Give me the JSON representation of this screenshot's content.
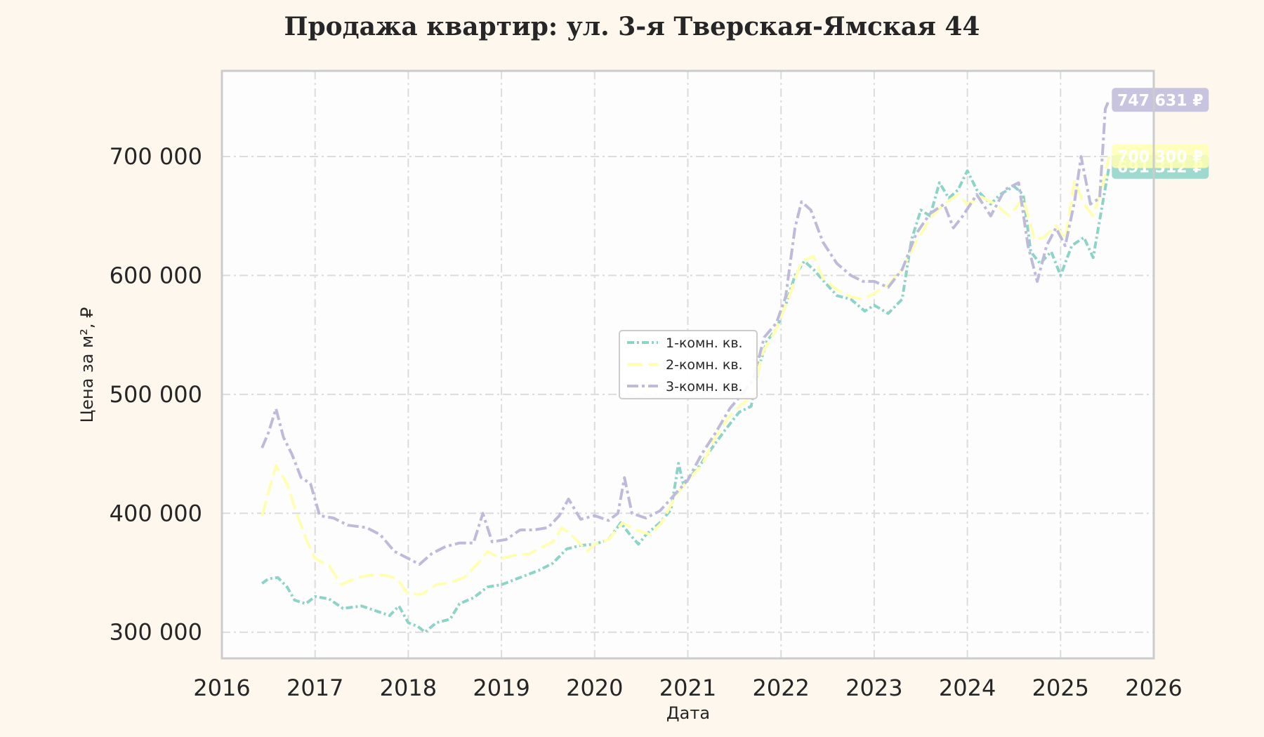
{
  "chart_data": {
    "type": "line",
    "title": "Продажа квартир: ул. 3-я Тверская-Ямская 44",
    "xlabel": "Дата",
    "ylabel": "Цена за м², ₽",
    "xlim": [
      2016.0,
      2026.0
    ],
    "ylim": [
      278000,
      772000
    ],
    "x_ticks": [
      2016,
      2017,
      2018,
      2019,
      2020,
      2021,
      2022,
      2023,
      2024,
      2025,
      2026
    ],
    "x_tick_labels": [
      "2016",
      "2017",
      "2018",
      "2019",
      "2020",
      "2021",
      "2022",
      "2023",
      "2024",
      "2025",
      "2026"
    ],
    "y_ticks": [
      300000,
      400000,
      500000,
      600000,
      700000
    ],
    "y_tick_labels": [
      "300 000",
      "400 000",
      "500 000",
      "600 000",
      "700 000"
    ],
    "grid": true,
    "legend_position": "center",
    "colors": {
      "background": "#fef7ee",
      "plot_background": "#fdfdfd",
      "grid": "#dcdcdc",
      "frame": "#cccccc",
      "text": "#262626"
    },
    "series": [
      {
        "name": "1-комн. кв.",
        "color": "#8dd3c7",
        "dash": "10,4,3,4",
        "end_label": "691 312 ₽",
        "points": [
          [
            2016.43,
            341000
          ],
          [
            2016.5,
            345000
          ],
          [
            2016.6,
            346000
          ],
          [
            2016.7,
            338000
          ],
          [
            2016.78,
            327000
          ],
          [
            2016.9,
            324000
          ],
          [
            2017.0,
            330000
          ],
          [
            2017.15,
            328000
          ],
          [
            2017.3,
            320000
          ],
          [
            2017.5,
            322000
          ],
          [
            2017.65,
            318000
          ],
          [
            2017.8,
            314000
          ],
          [
            2017.9,
            322000
          ],
          [
            2018.0,
            308000
          ],
          [
            2018.1,
            305000
          ],
          [
            2018.18,
            300000
          ],
          [
            2018.3,
            308000
          ],
          [
            2018.45,
            311000
          ],
          [
            2018.55,
            324000
          ],
          [
            2018.7,
            329000
          ],
          [
            2018.85,
            338000
          ],
          [
            2019.0,
            340000
          ],
          [
            2019.2,
            346000
          ],
          [
            2019.4,
            352000
          ],
          [
            2019.55,
            358000
          ],
          [
            2019.7,
            370000
          ],
          [
            2019.85,
            373000
          ],
          [
            2020.0,
            374000
          ],
          [
            2020.15,
            378000
          ],
          [
            2020.28,
            392000
          ],
          [
            2020.38,
            382000
          ],
          [
            2020.47,
            374000
          ],
          [
            2020.55,
            382000
          ],
          [
            2020.7,
            392000
          ],
          [
            2020.82,
            403000
          ],
          [
            2020.9,
            442000
          ],
          [
            2020.95,
            425000
          ],
          [
            2021.1,
            437000
          ],
          [
            2021.25,
            454000
          ],
          [
            2021.4,
            470000
          ],
          [
            2021.55,
            485000
          ],
          [
            2021.68,
            490000
          ],
          [
            2021.75,
            520000
          ],
          [
            2021.85,
            545000
          ],
          [
            2021.95,
            555000
          ],
          [
            2022.05,
            575000
          ],
          [
            2022.15,
            600000
          ],
          [
            2022.25,
            612000
          ],
          [
            2022.35,
            605000
          ],
          [
            2022.45,
            596000
          ],
          [
            2022.6,
            583000
          ],
          [
            2022.75,
            580000
          ],
          [
            2022.9,
            570000
          ],
          [
            2023.0,
            575000
          ],
          [
            2023.15,
            568000
          ],
          [
            2023.3,
            580000
          ],
          [
            2023.4,
            630000
          ],
          [
            2023.5,
            655000
          ],
          [
            2023.6,
            650000
          ],
          [
            2023.7,
            678000
          ],
          [
            2023.8,
            665000
          ],
          [
            2023.9,
            672000
          ],
          [
            2024.0,
            688000
          ],
          [
            2024.1,
            672000
          ],
          [
            2024.25,
            660000
          ],
          [
            2024.35,
            668000
          ],
          [
            2024.5,
            675000
          ],
          [
            2024.6,
            668000
          ],
          [
            2024.68,
            620000
          ],
          [
            2024.78,
            610000
          ],
          [
            2024.9,
            620000
          ],
          [
            2025.0,
            600000
          ],
          [
            2025.12,
            625000
          ],
          [
            2025.25,
            632000
          ],
          [
            2025.35,
            615000
          ],
          [
            2025.45,
            660000
          ],
          [
            2025.52,
            691312
          ]
        ]
      },
      {
        "name": "2-комн. кв.",
        "color": "#ffffb3",
        "dash": "22,8",
        "end_label": "700 300 ₽",
        "points": [
          [
            2016.43,
            398000
          ],
          [
            2016.5,
            418000
          ],
          [
            2016.58,
            440000
          ],
          [
            2016.7,
            425000
          ],
          [
            2016.8,
            400000
          ],
          [
            2016.92,
            375000
          ],
          [
            2017.0,
            362000
          ],
          [
            2017.15,
            356000
          ],
          [
            2017.28,
            340000
          ],
          [
            2017.45,
            346000
          ],
          [
            2017.6,
            348000
          ],
          [
            2017.75,
            348000
          ],
          [
            2017.88,
            345000
          ],
          [
            2018.0,
            332000
          ],
          [
            2018.15,
            332000
          ],
          [
            2018.3,
            340000
          ],
          [
            2018.45,
            342000
          ],
          [
            2018.6,
            346000
          ],
          [
            2018.75,
            358000
          ],
          [
            2018.85,
            368000
          ],
          [
            2019.0,
            362000
          ],
          [
            2019.15,
            365000
          ],
          [
            2019.3,
            366000
          ],
          [
            2019.45,
            372000
          ],
          [
            2019.55,
            376000
          ],
          [
            2019.65,
            388000
          ],
          [
            2019.8,
            378000
          ],
          [
            2019.92,
            368000
          ],
          [
            2020.0,
            374000
          ],
          [
            2020.15,
            378000
          ],
          [
            2020.3,
            392000
          ],
          [
            2020.45,
            386000
          ],
          [
            2020.6,
            382000
          ],
          [
            2020.72,
            392000
          ],
          [
            2020.85,
            412000
          ],
          [
            2021.0,
            428000
          ],
          [
            2021.15,
            440000
          ],
          [
            2021.3,
            465000
          ],
          [
            2021.45,
            482000
          ],
          [
            2021.58,
            492000
          ],
          [
            2021.7,
            498000
          ],
          [
            2021.8,
            535000
          ],
          [
            2021.95,
            555000
          ],
          [
            2022.1,
            585000
          ],
          [
            2022.22,
            612000
          ],
          [
            2022.35,
            616000
          ],
          [
            2022.45,
            598000
          ],
          [
            2022.6,
            588000
          ],
          [
            2022.75,
            582000
          ],
          [
            2022.88,
            580000
          ],
          [
            2023.0,
            585000
          ],
          [
            2023.15,
            592000
          ],
          [
            2023.3,
            605000
          ],
          [
            2023.45,
            628000
          ],
          [
            2023.6,
            648000
          ],
          [
            2023.75,
            660000
          ],
          [
            2023.9,
            668000
          ],
          [
            2024.0,
            660000
          ],
          [
            2024.15,
            666000
          ],
          [
            2024.3,
            660000
          ],
          [
            2024.45,
            650000
          ],
          [
            2024.6,
            665000
          ],
          [
            2024.72,
            630000
          ],
          [
            2024.82,
            632000
          ],
          [
            2024.95,
            642000
          ],
          [
            2025.05,
            630000
          ],
          [
            2025.15,
            680000
          ],
          [
            2025.25,
            660000
          ],
          [
            2025.35,
            650000
          ],
          [
            2025.45,
            675000
          ],
          [
            2025.52,
            700300
          ]
        ]
      },
      {
        "name": "3-комн. кв.",
        "color": "#bebada",
        "dash": "16,5,4,5",
        "end_label": "747 631 ₽",
        "points": [
          [
            2016.43,
            455000
          ],
          [
            2016.5,
            468000
          ],
          [
            2016.58,
            488000
          ],
          [
            2016.66,
            464000
          ],
          [
            2016.75,
            450000
          ],
          [
            2016.85,
            430000
          ],
          [
            2016.95,
            425000
          ],
          [
            2017.05,
            398000
          ],
          [
            2017.2,
            396000
          ],
          [
            2017.35,
            390000
          ],
          [
            2017.55,
            388000
          ],
          [
            2017.7,
            382000
          ],
          [
            2017.85,
            368000
          ],
          [
            2018.0,
            362000
          ],
          [
            2018.12,
            357000
          ],
          [
            2018.25,
            366000
          ],
          [
            2018.4,
            372000
          ],
          [
            2018.55,
            375000
          ],
          [
            2018.7,
            375000
          ],
          [
            2018.8,
            400000
          ],
          [
            2018.9,
            376000
          ],
          [
            2019.05,
            378000
          ],
          [
            2019.2,
            386000
          ],
          [
            2019.35,
            386000
          ],
          [
            2019.5,
            388000
          ],
          [
            2019.62,
            398000
          ],
          [
            2019.72,
            412000
          ],
          [
            2019.85,
            395000
          ],
          [
            2020.0,
            398000
          ],
          [
            2020.15,
            394000
          ],
          [
            2020.25,
            400000
          ],
          [
            2020.32,
            430000
          ],
          [
            2020.4,
            400000
          ],
          [
            2020.55,
            396000
          ],
          [
            2020.7,
            402000
          ],
          [
            2020.85,
            415000
          ],
          [
            2021.0,
            428000
          ],
          [
            2021.15,
            450000
          ],
          [
            2021.3,
            468000
          ],
          [
            2021.45,
            488000
          ],
          [
            2021.6,
            502000
          ],
          [
            2021.7,
            512000
          ],
          [
            2021.82,
            548000
          ],
          [
            2021.95,
            560000
          ],
          [
            2022.05,
            582000
          ],
          [
            2022.15,
            640000
          ],
          [
            2022.22,
            662000
          ],
          [
            2022.32,
            655000
          ],
          [
            2022.45,
            628000
          ],
          [
            2022.6,
            610000
          ],
          [
            2022.75,
            600000
          ],
          [
            2022.88,
            595000
          ],
          [
            2023.0,
            595000
          ],
          [
            2023.15,
            590000
          ],
          [
            2023.3,
            605000
          ],
          [
            2023.45,
            635000
          ],
          [
            2023.6,
            652000
          ],
          [
            2023.75,
            660000
          ],
          [
            2023.85,
            640000
          ],
          [
            2023.95,
            650000
          ],
          [
            2024.1,
            668000
          ],
          [
            2024.25,
            650000
          ],
          [
            2024.4,
            672000
          ],
          [
            2024.55,
            678000
          ],
          [
            2024.65,
            625000
          ],
          [
            2024.75,
            595000
          ],
          [
            2024.85,
            625000
          ],
          [
            2024.95,
            640000
          ],
          [
            2025.05,
            625000
          ],
          [
            2025.15,
            662000
          ],
          [
            2025.22,
            700000
          ],
          [
            2025.32,
            660000
          ],
          [
            2025.42,
            665000
          ],
          [
            2025.48,
            740000
          ],
          [
            2025.52,
            747631
          ]
        ]
      }
    ]
  }
}
